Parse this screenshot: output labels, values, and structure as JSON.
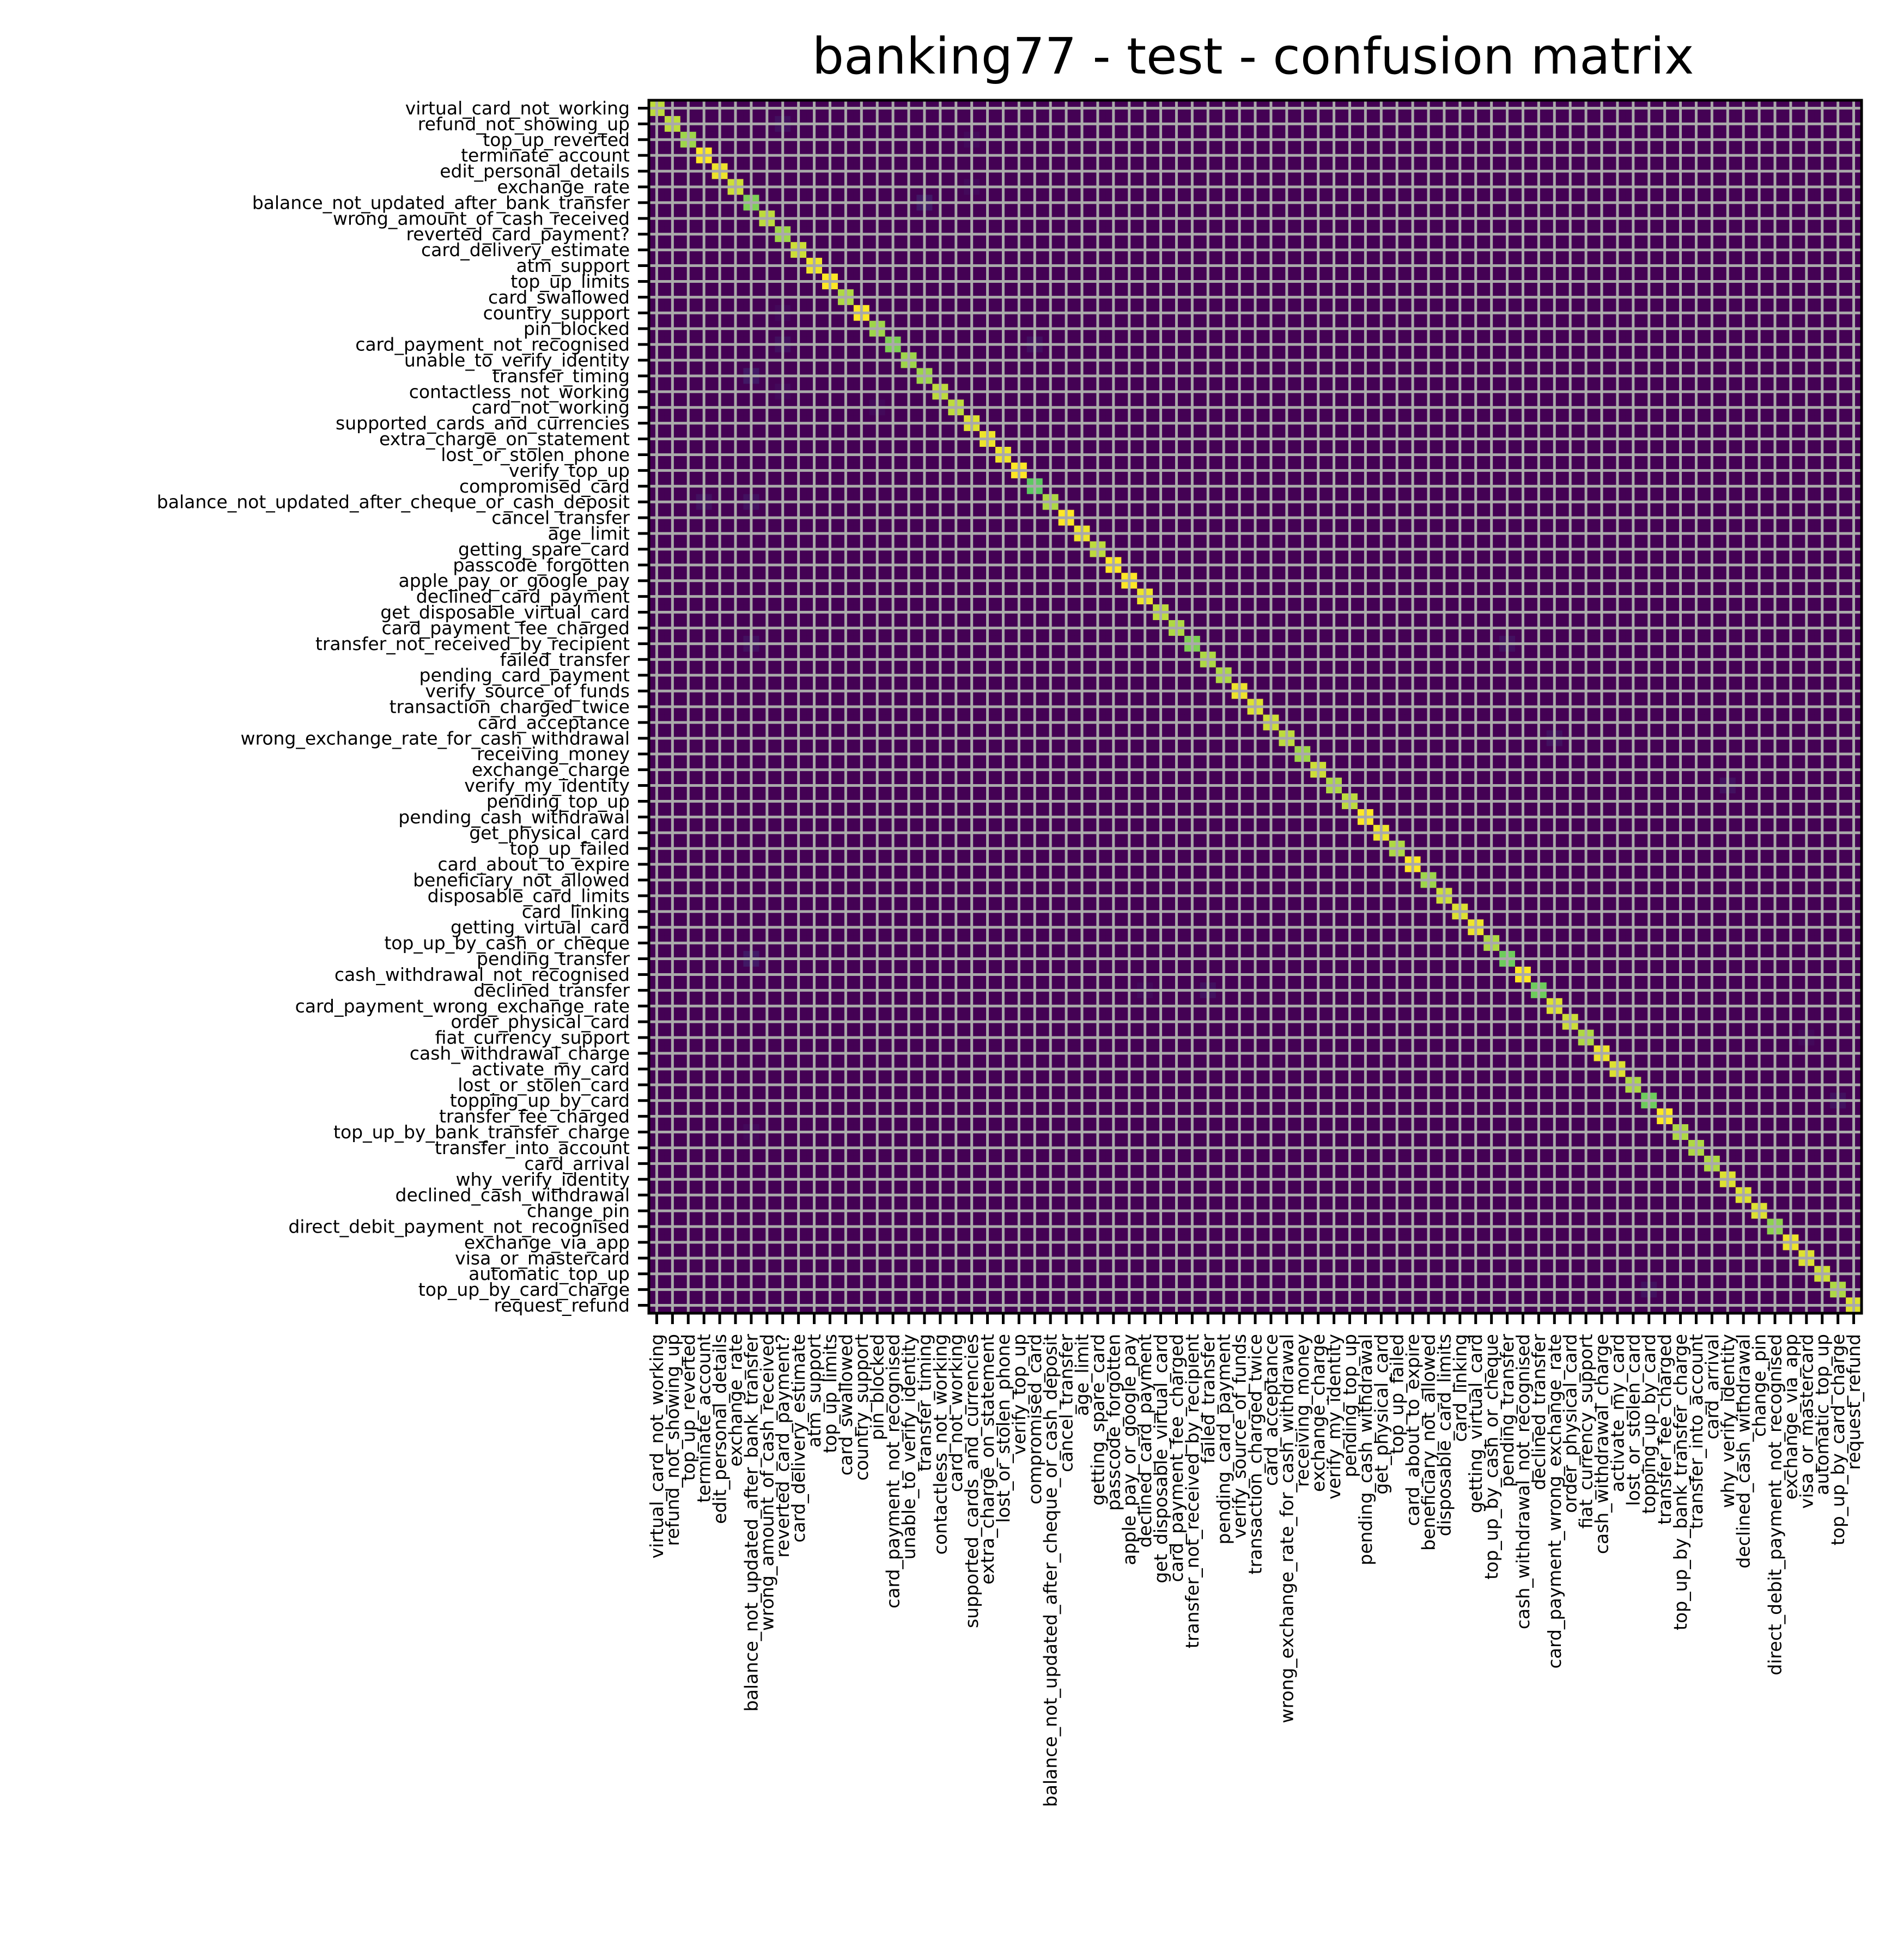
{
  "chart_data": {
    "type": "heatmap",
    "title": "banking77 - test - confusion matrix",
    "colormap": "viridis",
    "value_range": [
      0,
      40
    ],
    "grid": true,
    "grid_color": "#aaaaaa",
    "labels": [
      "virtual_card_not_working",
      "refund_not_showing_up",
      "top_up_reverted",
      "terminate_account",
      "edit_personal_details",
      "exchange_rate",
      "balance_not_updated_after_bank_transfer",
      "wrong_amount_of_cash_received",
      "reverted_card_payment?",
      "card_delivery_estimate",
      "atm_support",
      "top_up_limits",
      "card_swallowed",
      "country_support",
      "pin_blocked",
      "card_payment_not_recognised",
      "unable_to_verify_identity",
      "transfer_timing",
      "contactless_not_working",
      "card_not_working",
      "supported_cards_and_currencies",
      "extra_charge_on_statement",
      "lost_or_stolen_phone",
      "verify_top_up",
      "compromised_card",
      "balance_not_updated_after_cheque_or_cash_deposit",
      "cancel_transfer",
      "age_limit",
      "getting_spare_card",
      "passcode_forgotten",
      "apple_pay_or_google_pay",
      "declined_card_payment",
      "get_disposable_virtual_card",
      "card_payment_fee_charged",
      "transfer_not_received_by_recipient",
      "failed_transfer",
      "pending_card_payment",
      "verify_source_of_funds",
      "transaction_charged_twice",
      "card_acceptance",
      "wrong_exchange_rate_for_cash_withdrawal",
      "receiving_money",
      "exchange_charge",
      "verify_my_identity",
      "pending_top_up",
      "pending_cash_withdrawal",
      "get_physical_card",
      "top_up_failed",
      "card_about_to_expire",
      "beneficiary_not_allowed",
      "disposable_card_limits",
      "card_linking",
      "getting_virtual_card",
      "top_up_by_cash_or_cheque",
      "pending_transfer",
      "cash_withdrawal_not_recognised",
      "declined_transfer",
      "card_payment_wrong_exchange_rate",
      "order_physical_card",
      "fiat_currency_support",
      "cash_withdrawal_charge",
      "activate_my_card",
      "lost_or_stolen_card",
      "topping_up_by_card",
      "transfer_fee_charged",
      "top_up_by_bank_transfer_charge",
      "transfer_into_account",
      "card_arrival",
      "why_verify_identity",
      "declined_cash_withdrawal",
      "change_pin",
      "direct_debit_payment_not_recognised",
      "exchange_via_app",
      "visa_or_mastercard",
      "automatic_top_up",
      "top_up_by_card_charge",
      "request_refund"
    ],
    "diagonal": [
      36,
      36,
      34,
      40,
      39,
      37,
      32,
      36,
      34,
      37,
      39,
      40,
      35,
      40,
      34,
      32,
      34,
      34,
      36,
      36,
      38,
      39,
      39,
      40,
      30,
      35,
      40,
      39,
      36,
      40,
      40,
      39,
      36,
      35,
      32,
      35,
      35,
      39,
      38,
      37,
      36,
      34,
      37,
      35,
      36,
      40,
      39,
      35,
      40,
      34,
      37,
      38,
      39,
      35,
      31,
      40,
      31,
      38,
      37,
      35,
      39,
      38,
      35,
      31,
      40,
      35,
      35,
      35,
      38,
      38,
      38,
      33,
      39,
      38,
      37,
      35,
      38
    ],
    "off_diagonal": [
      {
        "true": 2,
        "pred": 9,
        "value": 2
      },
      {
        "true": 3,
        "pred": 21,
        "value": 1
      },
      {
        "true": 6,
        "pred": 21,
        "value": 1
      },
      {
        "true": 7,
        "pred": 18,
        "value": 3
      },
      {
        "true": 14,
        "pred": 9,
        "value": 1
      },
      {
        "true": 16,
        "pred": 25,
        "value": 2
      },
      {
        "true": 16,
        "pred": 9,
        "value": 2
      },
      {
        "true": 18,
        "pred": 7,
        "value": 3
      },
      {
        "true": 19,
        "pred": 9,
        "value": 1
      },
      {
        "true": 20,
        "pred": 15,
        "value": 1
      },
      {
        "true": 26,
        "pred": 4,
        "value": 2
      },
      {
        "true": 26,
        "pred": 7,
        "value": 2
      },
      {
        "true": 35,
        "pred": 7,
        "value": 2
      },
      {
        "true": 35,
        "pred": 55,
        "value": 2
      },
      {
        "true": 41,
        "pred": 58,
        "value": 2
      },
      {
        "true": 44,
        "pred": 69,
        "value": 2
      },
      {
        "true": 55,
        "pred": 7,
        "value": 3
      },
      {
        "true": 57,
        "pred": 36,
        "value": 2
      },
      {
        "true": 57,
        "pred": 32,
        "value": 1
      },
      {
        "true": 60,
        "pred": 74,
        "value": 1
      },
      {
        "true": 64,
        "pred": 76,
        "value": 2
      },
      {
        "true": 66,
        "pred": 7,
        "value": 1
      },
      {
        "true": 76,
        "pred": 64,
        "value": 2
      }
    ]
  }
}
